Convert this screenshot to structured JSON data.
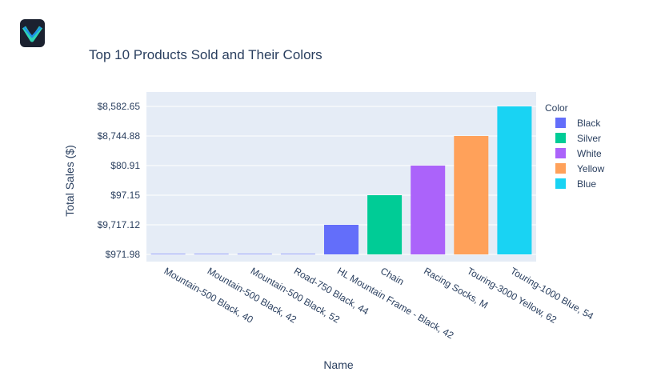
{
  "app": {
    "logo_icon": "check-v-logo-icon"
  },
  "chart_data": {
    "type": "bar",
    "title": "Top 10 Products Sold and Their Colors",
    "xlabel": "Name",
    "ylabel": "Total Sales ($)",
    "categories": [
      "Mountain-500 Black, 40",
      "Mountain-500 Black, 42",
      "Mountain-500 Black, 52",
      "Road-750 Black, 44",
      "HL Mountain Frame - Black, 42",
      "Chain",
      "Racing Socks, M",
      "Touring-3000 Yellow, 62",
      "Touring-1000 Blue, 54"
    ],
    "y_categories": [
      "$971.98",
      "$9,717.12",
      "$97.15",
      "$80.91",
      "$8,744.88",
      "$8,582.65"
    ],
    "values": [
      "$971.98",
      "$971.98",
      "$971.98",
      "$971.98",
      "$9,717.12",
      "$97.15",
      "$80.91",
      "$8,744.88",
      "$8,582.65"
    ],
    "colors": [
      "Black",
      "Black",
      "Black",
      "Black",
      "Black",
      "Silver",
      "White",
      "Yellow",
      "Blue"
    ],
    "legend": {
      "title": "Color",
      "position": "right",
      "entries": [
        {
          "name": "Black",
          "color": "#636efa"
        },
        {
          "name": "Silver",
          "color": "#00cc96"
        },
        {
          "name": "White",
          "color": "#ab63fa"
        },
        {
          "name": "Yellow",
          "color": "#ffa15a"
        },
        {
          "name": "Blue",
          "color": "#19d3f3"
        }
      ]
    },
    "grid": true,
    "plot_background": "#e5ecf6"
  }
}
